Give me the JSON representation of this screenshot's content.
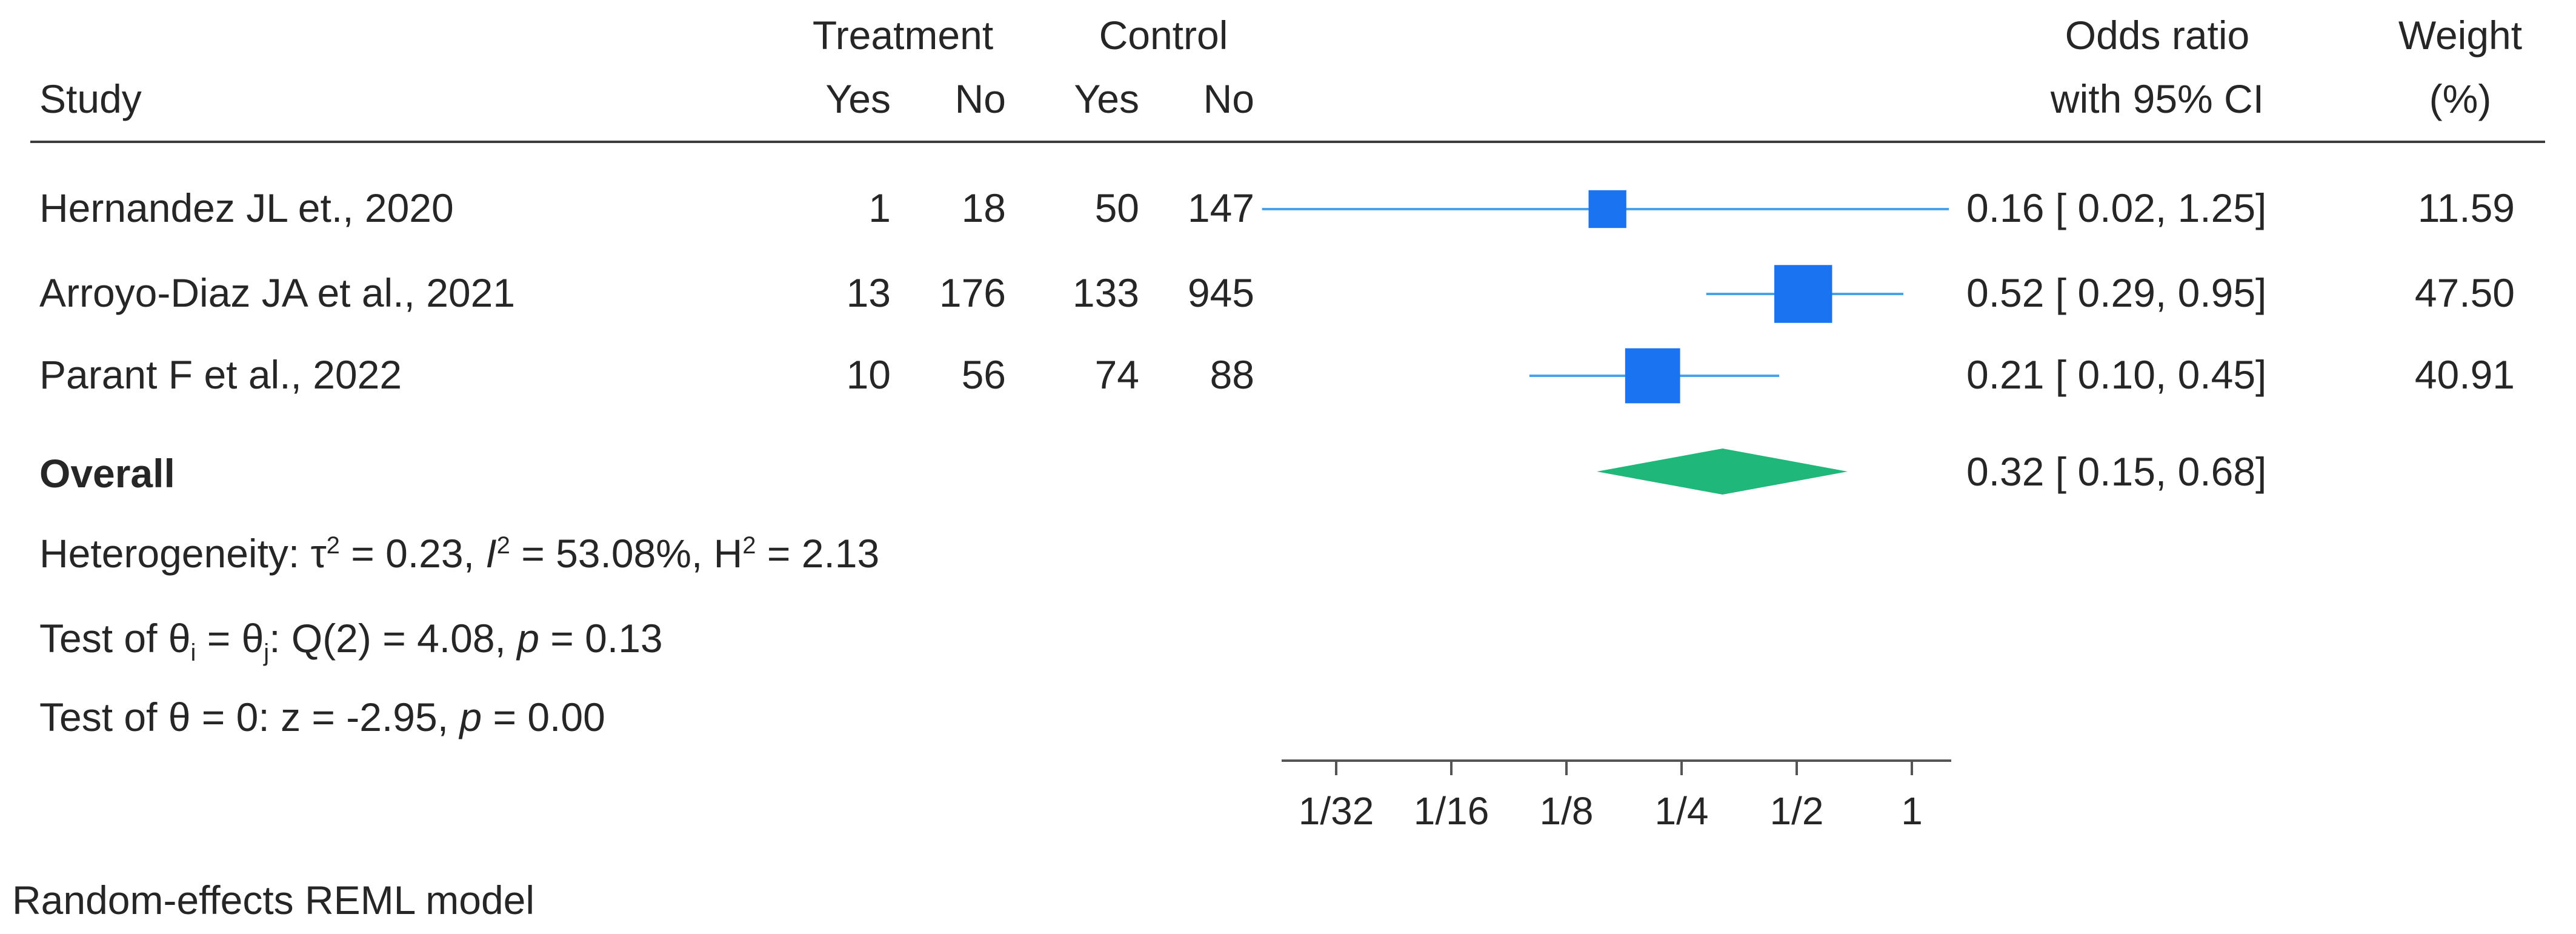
{
  "header": {
    "study": "Study",
    "treatment": "Treatment",
    "control": "Control",
    "yes": "Yes",
    "no": "No",
    "effect_line1": "Odds ratio",
    "effect_line2": "with 95% CI",
    "weight_line1": "Weight",
    "weight_line2": "(%)"
  },
  "rows": [
    {
      "study": "Hernandez JL et., 2020",
      "t_yes": "1",
      "t_no": "18",
      "c_yes": "50",
      "c_no": "147",
      "ci_text": "0.16 [ 0.02,  1.25]",
      "weight": "11.59"
    },
    {
      "study": "Arroyo-Diaz JA et al., 2021",
      "t_yes": "13",
      "t_no": "176",
      "c_yes": "133",
      "c_no": "945",
      "ci_text": "0.52 [ 0.29,  0.95]",
      "weight": "47.50"
    },
    {
      "study": "Parant F et al., 2022",
      "t_yes": "10",
      "t_no": "56",
      "c_yes": "74",
      "c_no": "88",
      "ci_text": "0.21 [ 0.10,  0.45]",
      "weight": "40.91"
    }
  ],
  "overall": {
    "label": "Overall",
    "ci_text": "0.32 [ 0.15,  0.68]"
  },
  "heterogeneity": {
    "prefix": "Heterogeneity: τ",
    "tau_sup": "2",
    "tau_val": " = 0.23, ",
    "i_letter": "I",
    "i_sup": "2",
    "i_val": " = 53.08%, H",
    "h_sup": "2",
    "h_val": " = 2.13"
  },
  "test_homog": {
    "p1": "Test of θ",
    "sub_i": "i",
    "p2": " = θ",
    "sub_j": "j",
    "p3": ": Q(2) = 4.08, ",
    "p_letter": "p",
    "p4": " = 0.13"
  },
  "test_zero": {
    "p1": "Test of θ = 0: z = -2.95, ",
    "p_letter": "p",
    "p2": "  = 0.00"
  },
  "footnote": "Random-effects REML model",
  "colors": {
    "study_marker": "#1a73f0",
    "ci_line": "#4aa3e8",
    "overall_diamond": "#1fb87a",
    "axis": "#555555"
  },
  "chart_data": {
    "type": "forest",
    "scale": "log2",
    "xlim": [
      0.02,
      1.25
    ],
    "x_ticks": [
      0.03125,
      0.0625,
      0.125,
      0.25,
      0.5,
      1
    ],
    "x_tick_labels": [
      "1/32",
      "1/16",
      "1/8",
      "1/4",
      "1/2",
      "1"
    ],
    "studies": [
      {
        "label": "Hernandez JL et., 2020",
        "or": 0.16,
        "lo": 0.02,
        "hi": 1.25,
        "weight": 11.59
      },
      {
        "label": "Arroyo-Diaz JA et al., 2021",
        "or": 0.52,
        "lo": 0.29,
        "hi": 0.95,
        "weight": 47.5
      },
      {
        "label": "Parant F et al., 2022",
        "or": 0.21,
        "lo": 0.1,
        "hi": 0.45,
        "weight": 40.91
      }
    ],
    "overall": {
      "label": "Overall",
      "or": 0.32,
      "lo": 0.15,
      "hi": 0.68
    }
  }
}
